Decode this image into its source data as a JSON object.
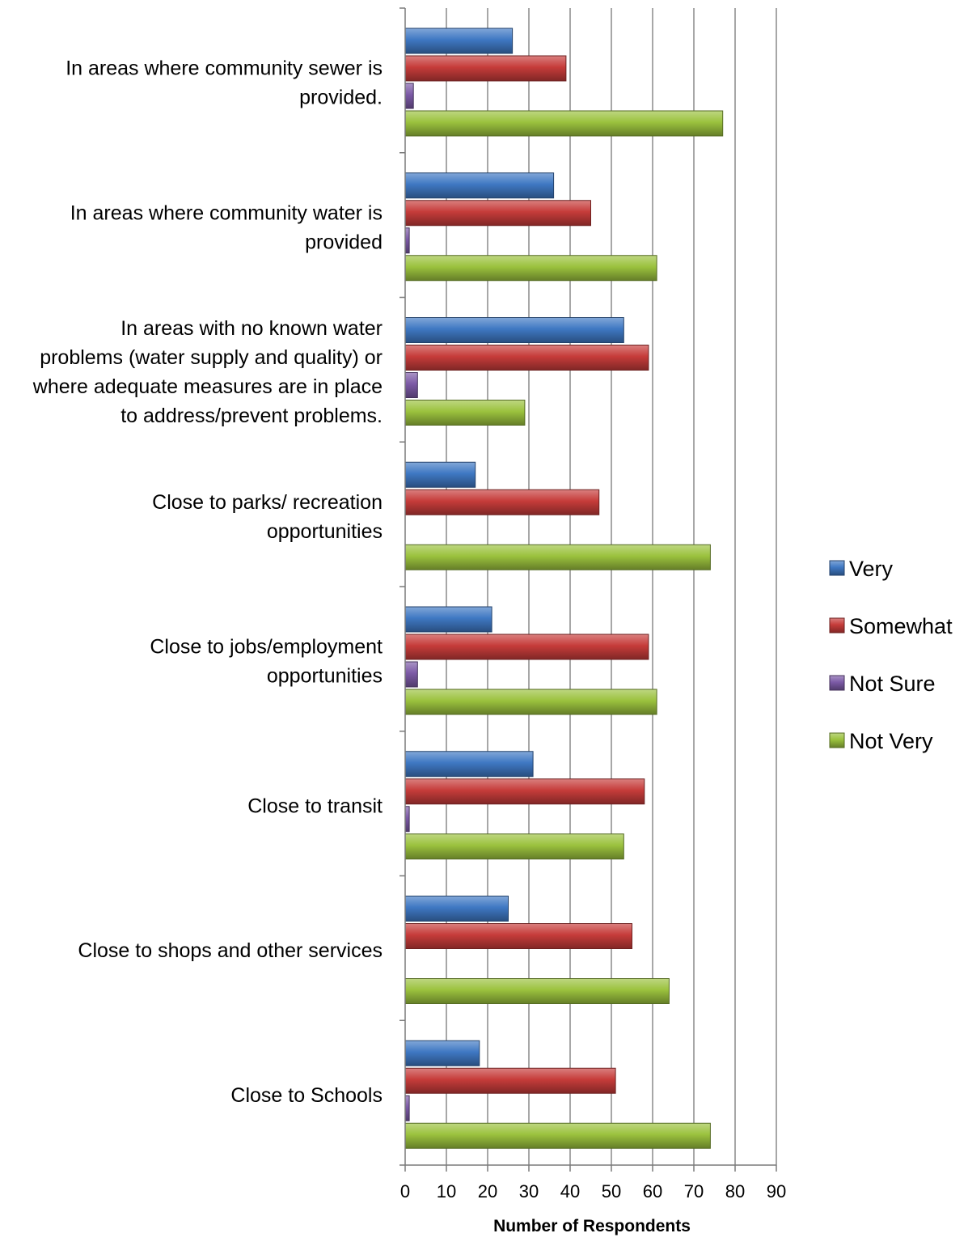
{
  "chart_data": {
    "type": "bar",
    "orientation": "horizontal",
    "title": "",
    "xlabel": "Number of Respondents",
    "ylabel": "",
    "xlim": [
      0,
      90
    ],
    "x_ticks": [
      0,
      10,
      20,
      30,
      40,
      50,
      60,
      70,
      80,
      90
    ],
    "grid": "vertical",
    "legend_position": "right",
    "categories": [
      [
        "In areas where community sewer is",
        "provided."
      ],
      [
        "In areas where community water is",
        "provided"
      ],
      [
        "In areas with no known water",
        "problems (water supply and quality) or",
        "where adequate measures are in place",
        "to address/prevent problems."
      ],
      [
        "Close to parks/ recreation",
        "opportunities"
      ],
      [
        "Close to jobs/employment",
        "opportunities"
      ],
      [
        "Close to transit"
      ],
      [
        "Close to shops and other services"
      ],
      [
        "Close to Schools"
      ]
    ],
    "series": [
      {
        "name": "Very",
        "color": "#3f78c3",
        "values": [
          26,
          36,
          53,
          17,
          21,
          31,
          25,
          18
        ]
      },
      {
        "name": "Somewhat",
        "color": "#c63c3a",
        "values": [
          39,
          45,
          59,
          47,
          59,
          58,
          55,
          51
        ]
      },
      {
        "name": "Not Sure",
        "color": "#7c5aa6",
        "values": [
          2,
          1,
          3,
          0,
          3,
          1,
          0,
          1
        ]
      },
      {
        "name": "Not Very",
        "color": "#9bc23e",
        "values": [
          77,
          61,
          29,
          74,
          61,
          53,
          64,
          74
        ]
      }
    ]
  }
}
